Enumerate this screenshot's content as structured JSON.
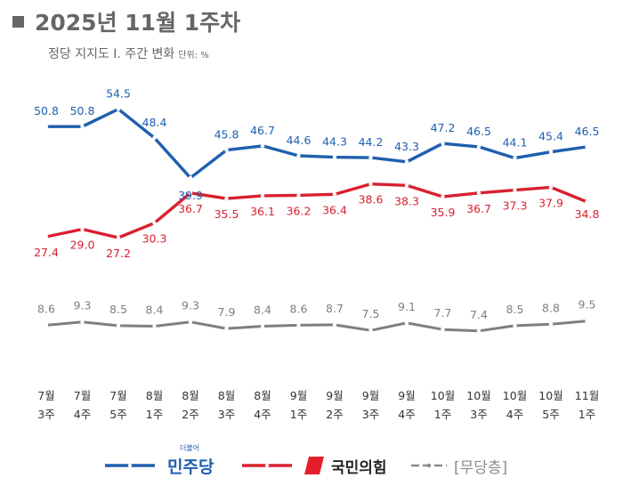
{
  "title": "2025년 11월 1주차",
  "subtitle": "정당 지지도  Ⅰ. 주간 변화",
  "unit": "단위: %",
  "chart_data": {
    "type": "line",
    "categories": [
      [
        "7월",
        "3주"
      ],
      [
        "7월",
        "4주"
      ],
      [
        "7월",
        "5주"
      ],
      [
        "8월",
        "1주"
      ],
      [
        "8월",
        "2주"
      ],
      [
        "8월",
        "3주"
      ],
      [
        "8월",
        "4주"
      ],
      [
        "9월",
        "1주"
      ],
      [
        "9월",
        "2주"
      ],
      [
        "9월",
        "3주"
      ],
      [
        "9월",
        "4주"
      ],
      [
        "10월",
        "1주"
      ],
      [
        "10월",
        "3주"
      ],
      [
        "10월",
        "4주"
      ],
      [
        "10월",
        "5주"
      ],
      [
        "11월",
        "1주"
      ]
    ],
    "series": [
      {
        "name": "민주당",
        "color": "#1f5fae",
        "values": [
          50.8,
          50.8,
          54.5,
          48.4,
          39.9,
          45.8,
          46.7,
          44.6,
          44.3,
          44.2,
          43.3,
          47.2,
          46.5,
          44.1,
          45.4,
          46.5
        ]
      },
      {
        "name": "국민의힘",
        "color": "#d9202f",
        "values": [
          27.4,
          29.0,
          27.2,
          30.3,
          36.7,
          35.5,
          36.1,
          36.2,
          36.4,
          38.6,
          38.3,
          35.9,
          36.7,
          37.3,
          37.9,
          34.8
        ]
      },
      {
        "name": "[무당층]",
        "color": "#7f7f7f",
        "values": [
          8.6,
          9.3,
          8.5,
          8.4,
          9.3,
          7.9,
          8.4,
          8.6,
          8.7,
          7.5,
          9.1,
          7.7,
          7.4,
          8.5,
          8.8,
          9.5
        ]
      }
    ],
    "legend": "bottom",
    "grid": false
  },
  "legend": {
    "minju_superscript": "더불어",
    "minju_label": "민주당",
    "ppp_label": "국민의힘",
    "none_label": "[무당층]"
  }
}
